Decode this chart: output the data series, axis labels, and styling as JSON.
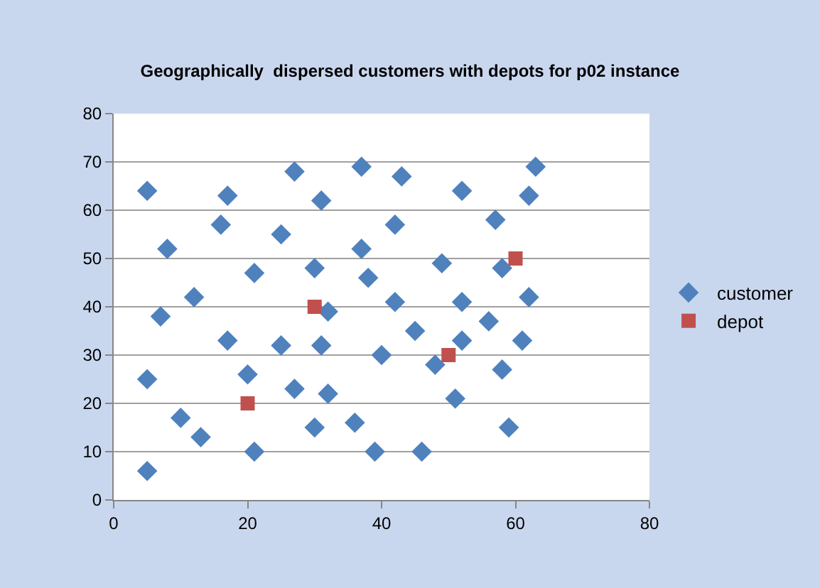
{
  "chart_data": {
    "type": "scatter",
    "title": "Geographically  dispersed customers with depots for p02 instance",
    "xlim": [
      0,
      80
    ],
    "xticks": [
      0,
      20,
      40,
      60,
      80
    ],
    "ylim": [
      0,
      80
    ],
    "yticks": [
      0,
      10,
      20,
      30,
      40,
      50,
      60,
      70,
      80
    ],
    "grid": "y",
    "legend": "right",
    "series": [
      {
        "name": "customer",
        "color": "#4f81bd",
        "marker": "diamond",
        "x": [
          5,
          5,
          5,
          7,
          8,
          10,
          12,
          13,
          16,
          17,
          17,
          20,
          21,
          21,
          25,
          25,
          27,
          27,
          30,
          30,
          31,
          31,
          32,
          32,
          36,
          37,
          37,
          38,
          39,
          40,
          42,
          42,
          43,
          45,
          46,
          48,
          49,
          51,
          52,
          52,
          52,
          56,
          57,
          58,
          58,
          59,
          61,
          62,
          62,
          63
        ],
        "values": [
          64,
          25,
          6,
          38,
          52,
          17,
          42,
          13,
          57,
          63,
          33,
          26,
          47,
          10,
          55,
          32,
          68,
          23,
          48,
          15,
          62,
          32,
          39,
          22,
          16,
          69,
          52,
          46,
          10,
          30,
          57,
          41,
          67,
          35,
          10,
          28,
          49,
          21,
          64,
          41,
          33,
          37,
          58,
          48,
          27,
          15,
          33,
          63,
          42,
          69
        ]
      },
      {
        "name": "depot",
        "color": "#c0504d",
        "marker": "square",
        "x": [
          20,
          30,
          50,
          60
        ],
        "values": [
          20,
          40,
          30,
          50
        ]
      }
    ]
  }
}
